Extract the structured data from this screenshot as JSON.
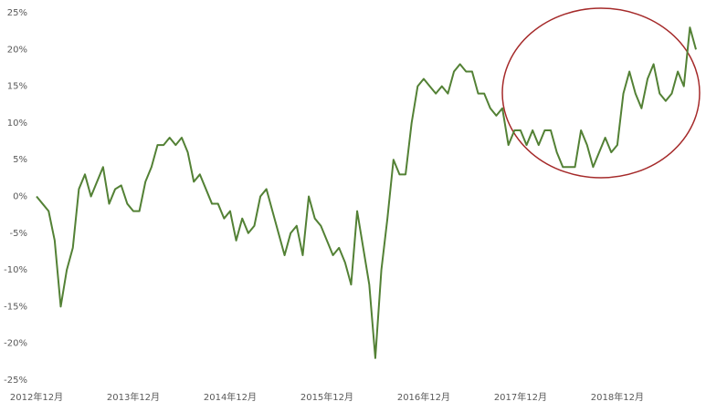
{
  "chart_data": {
    "type": "line",
    "categories": [
      "2012年12月",
      null,
      null,
      null,
      null,
      null,
      null,
      null,
      null,
      null,
      null,
      null,
      null,
      null,
      null,
      null,
      "2013年12月",
      null,
      null,
      null,
      null,
      null,
      null,
      null,
      null,
      null,
      null,
      null,
      null,
      null,
      null,
      null,
      "2014年12月",
      null,
      null,
      null,
      null,
      null,
      null,
      null,
      null,
      null,
      null,
      null,
      null,
      null,
      null,
      null,
      "2015年12月",
      null,
      null,
      null,
      null,
      null,
      null,
      null,
      null,
      null,
      null,
      null,
      null,
      null,
      null,
      null,
      "2016年12月",
      null,
      null,
      null,
      null,
      null,
      null,
      null,
      null,
      null,
      null,
      null,
      null,
      null,
      null,
      null,
      "2017年12月",
      null,
      null,
      null,
      null,
      null,
      null,
      null,
      null,
      null,
      null,
      null,
      null,
      null,
      null,
      null,
      "2018年12月",
      null,
      null,
      null,
      null,
      null,
      null,
      null,
      null,
      null,
      null,
      null,
      null,
      null
    ],
    "series": [
      {
        "color": "#538135",
        "values": [
          0,
          -1,
          -2,
          -6,
          -15,
          -10,
          -7,
          1,
          3,
          0,
          2,
          4,
          -1,
          1,
          1.5,
          -1,
          -2,
          -2,
          2,
          4,
          7,
          7,
          8,
          7,
          8,
          6,
          2,
          3,
          1,
          -1,
          -1,
          -3,
          -2,
          -6,
          -3,
          -5,
          -4,
          0,
          1,
          -2,
          -5,
          -8,
          -5,
          -4,
          -8,
          0,
          -3,
          -4,
          -6,
          -8,
          -7,
          -9,
          -12,
          -2,
          -7,
          -12,
          -22,
          -10,
          -3,
          5,
          3,
          3,
          10,
          15,
          16,
          15,
          14,
          15,
          14,
          17,
          18,
          17,
          17,
          14,
          14,
          12,
          11,
          12,
          7,
          9,
          9,
          7,
          9,
          7,
          9,
          9,
          6,
          4,
          4,
          4,
          9,
          7,
          4,
          6,
          8,
          6,
          7,
          14,
          17,
          14,
          12,
          16,
          18,
          14,
          13,
          14,
          17,
          15,
          23,
          20
        ]
      }
    ],
    "ylim": [
      -25,
      25
    ],
    "yticks": [
      {
        "value": 25,
        "label": "25%"
      },
      {
        "value": 20,
        "label": "20%"
      },
      {
        "value": 15,
        "label": "15%"
      },
      {
        "value": 10,
        "label": "10%"
      },
      {
        "value": 5,
        "label": "5%"
      },
      {
        "value": 0,
        "label": "0%"
      },
      {
        "value": -5,
        "label": "-5%"
      },
      {
        "value": -10,
        "label": "-10%"
      },
      {
        "value": -15,
        "label": "-15%"
      },
      {
        "value": -20,
        "label": "-20%"
      },
      {
        "value": -25,
        "label": "-25%"
      }
    ]
  }
}
